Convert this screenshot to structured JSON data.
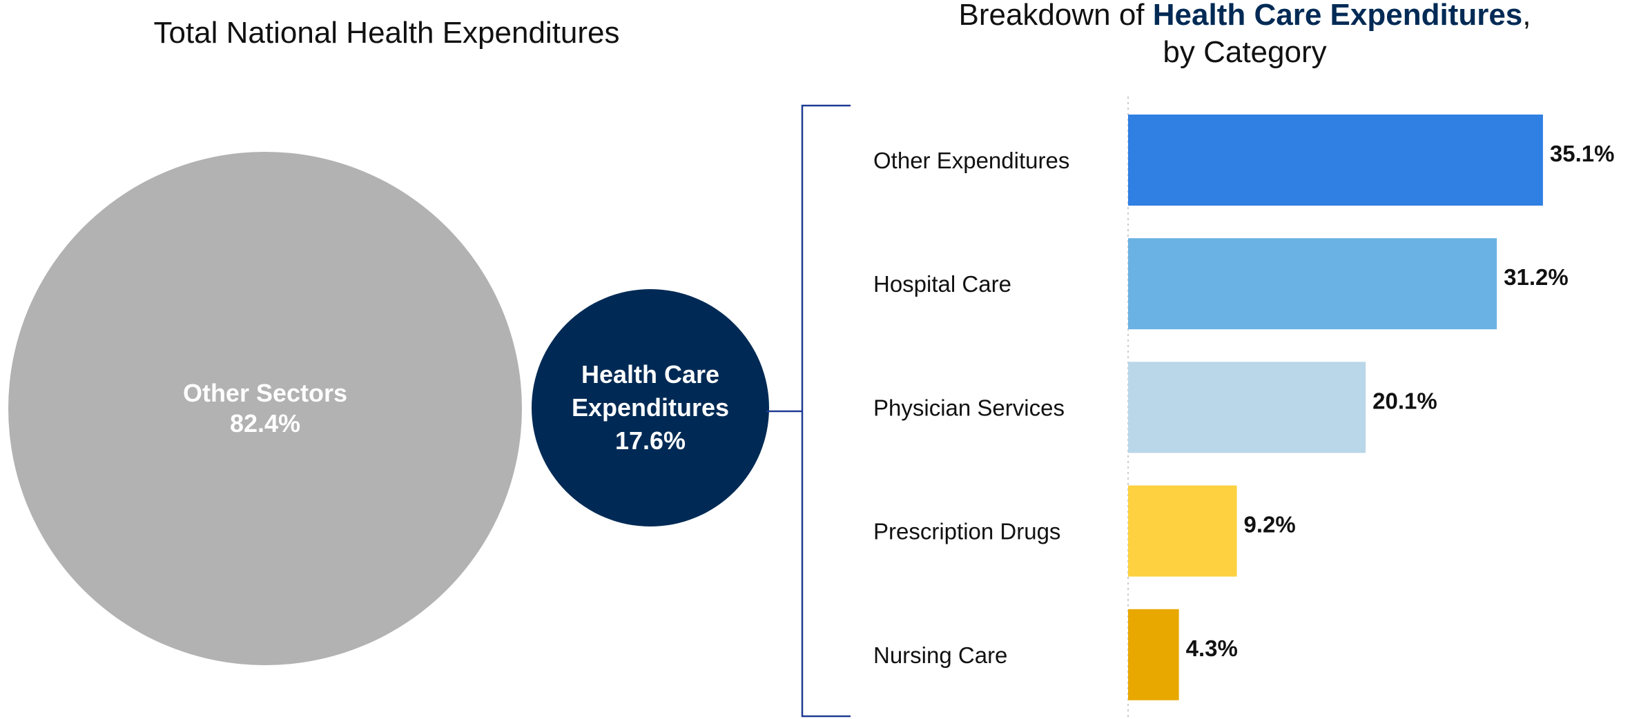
{
  "chart_data": [
    {
      "type": "bubble",
      "title": "Total National Health Expenditures",
      "slices": [
        {
          "label": "Other Sectors",
          "value": 82.4,
          "value_label": "82.4%",
          "color": "#B2B2B2"
        },
        {
          "label_line1": "Health Care",
          "label_line2": "Expenditures",
          "value": 17.6,
          "value_label": "17.6%",
          "color": "#002A55"
        }
      ]
    },
    {
      "type": "bar",
      "orientation": "horizontal",
      "title_part1": "Breakdown of ",
      "title_highlight": "Health Care Expenditures",
      "title_part2": ",",
      "title_line2": "by Category",
      "title_highlight_color": "#002A55",
      "categories": [
        "Other Expenditures",
        "Hospital Care",
        "Physician Services",
        "Prescription Drugs",
        "Nursing Care"
      ],
      "values": [
        35.1,
        31.2,
        20.1,
        9.2,
        4.3
      ],
      "value_labels": [
        "35.1%",
        "31.2%",
        "20.1%",
        "9.2%",
        "4.3%"
      ],
      "colors": [
        "#307FE2",
        "#6AB2E3",
        "#B9D7E8",
        "#FDD13F",
        "#E8A800"
      ],
      "unit": "%",
      "grid": false
    }
  ]
}
